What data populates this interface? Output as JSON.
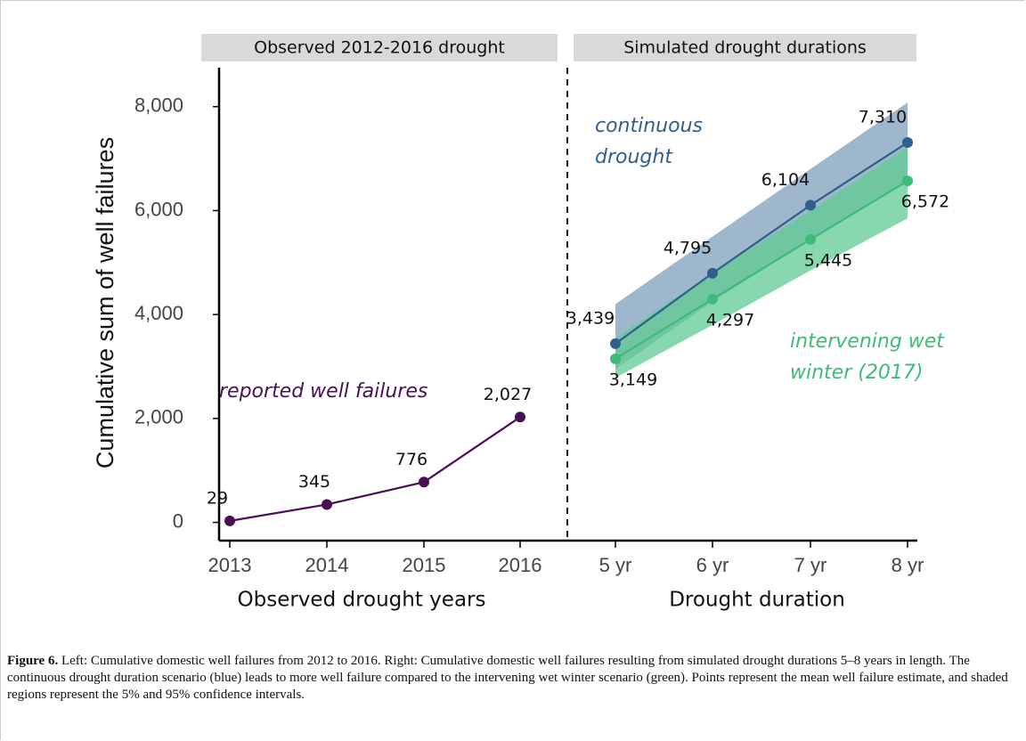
{
  "chart_data": [
    {
      "type": "line",
      "header": "Observed 2012-2016 drought",
      "categories": [
        "2013",
        "2014",
        "2015",
        "2016"
      ],
      "xlabel": "Observed drought years",
      "ylabel": "Cumulative sum of well failures",
      "ylim": [
        -350,
        8750
      ],
      "yticks": [
        0,
        {
          "value": 2000,
          "label": "2,000"
        },
        {
          "value": 4000,
          "label": "4,000"
        },
        {
          "value": 6000,
          "label": "6,000"
        },
        {
          "value": 8000,
          "label": "8,000"
        }
      ],
      "series": [
        {
          "name": "reported well failures",
          "color": "#4a0f57",
          "values": [
            29,
            345,
            776,
            2027
          ],
          "value_labels": [
            "29",
            "345",
            "776",
            "2,027"
          ]
        }
      ]
    },
    {
      "type": "band-line",
      "header": "Simulated drought durations",
      "categories": [
        "5 yr",
        "6 yr",
        "7 yr",
        "8 yr"
      ],
      "xlabel": "Drought duration",
      "ylim": [
        -350,
        8750
      ],
      "series": [
        {
          "name": "continuous drought",
          "color": "#2f5f8c",
          "band_color": "#7f9fbb",
          "values": [
            3439,
            4795,
            6104,
            7310
          ],
          "value_labels": [
            "3,439",
            "4,795",
            "6,104",
            "7,310"
          ],
          "lower": [
            2950,
            4250,
            5450,
            6600
          ],
          "upper": [
            4200,
            5500,
            6800,
            8080
          ]
        },
        {
          "name": "intervening wet winter (2017)",
          "color": "#3dbb7b",
          "band_color": "#5fcb93",
          "values": [
            3149,
            4297,
            5445,
            6572
          ],
          "value_labels": [
            "3,149",
            "4,297",
            "5,445",
            "6,572"
          ],
          "lower": [
            2780,
            3800,
            4850,
            5850
          ],
          "upper": [
            3550,
            4800,
            6000,
            7230
          ]
        }
      ]
    }
  ],
  "caption": {
    "label": "Figure 6.",
    "text": "Left: Cumulative domestic well failures from 2012 to 2016. Right: Cumulative domestic well failures resulting from simulated drought durations 5–8 years in length. The continuous drought duration scenario (blue) leads to more well failure compared to the intervening wet winter scenario (green). Points represent the mean well failure estimate, and shaded regions represent the 5% and 95% confidence intervals."
  }
}
